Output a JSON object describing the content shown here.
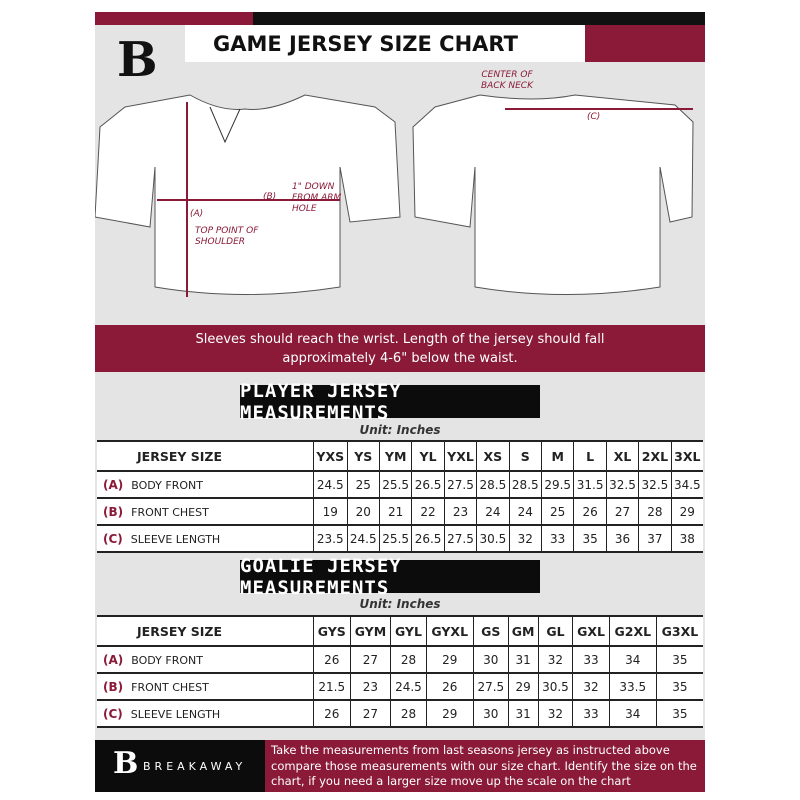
{
  "header": {
    "title": "GAME JERSEY SIZE CHART",
    "logo_letter": "B"
  },
  "diagram": {
    "a_label": "(A)",
    "a_note": "TOP POINT OF SHOULDER",
    "b_label": "(B)",
    "b_note": "1\" DOWN FROM ARM HOLE",
    "c_label": "(C)",
    "c_note": "CENTER OF BACK NECK"
  },
  "instruction": "Sleeves should reach the wrist. Length of the jersey should fall approximately 4-6\" below the waist.",
  "player": {
    "title": "PLAYER JERSEY MEASUREMENTS",
    "unit": "Unit: Inches",
    "size_label": "JERSEY SIZE",
    "sizes": [
      "YXS",
      "YS",
      "YM",
      "YL",
      "YXL",
      "XS",
      "S",
      "M",
      "L",
      "XL",
      "2XL",
      "3XL"
    ],
    "rows": [
      {
        "key": "(A)",
        "label": "BODY FRONT",
        "values": [
          "24.5",
          "25",
          "25.5",
          "26.5",
          "27.5",
          "28.5",
          "28.5",
          "29.5",
          "31.5",
          "32.5",
          "32.5",
          "34.5"
        ]
      },
      {
        "key": "(B)",
        "label": "FRONT CHEST",
        "values": [
          "19",
          "20",
          "21",
          "22",
          "23",
          "24",
          "24",
          "25",
          "26",
          "27",
          "28",
          "29"
        ]
      },
      {
        "key": "(C)",
        "label": "SLEEVE LENGTH",
        "values": [
          "23.5",
          "24.5",
          "25.5",
          "26.5",
          "27.5",
          "30.5",
          "32",
          "33",
          "35",
          "36",
          "37",
          "38"
        ]
      }
    ]
  },
  "goalie": {
    "title": "GOALIE JERSEY MEASUREMENTS",
    "unit": "Unit: Inches",
    "size_label": "JERSEY SIZE",
    "sizes": [
      "GYS",
      "GYM",
      "GYL",
      "GYXL",
      "GS",
      "GM",
      "GL",
      "GXL",
      "G2XL",
      "G3XL"
    ],
    "rows": [
      {
        "key": "(A)",
        "label": "BODY FRONT",
        "values": [
          "26",
          "27",
          "28",
          "29",
          "30",
          "31",
          "32",
          "33",
          "34",
          "35"
        ]
      },
      {
        "key": "(B)",
        "label": "FRONT CHEST",
        "values": [
          "21.5",
          "23",
          "24.5",
          "26",
          "27.5",
          "29",
          "30.5",
          "32",
          "33.5",
          "35"
        ]
      },
      {
        "key": "(C)",
        "label": "SLEEVE LENGTH",
        "values": [
          "26",
          "27",
          "28",
          "29",
          "30",
          "31",
          "32",
          "33",
          "34",
          "35"
        ]
      }
    ]
  },
  "footer": {
    "brand": "BREAKAWAY",
    "note": "Take the measurements from last seasons jersey as instructed above compare those measurements  with our size chart. Identify the size on the chart, if you need a larger size move up the scale on the chart"
  },
  "colors": {
    "maroon": "#8a1a38",
    "black": "#111111",
    "background": "#e4e4e4"
  }
}
